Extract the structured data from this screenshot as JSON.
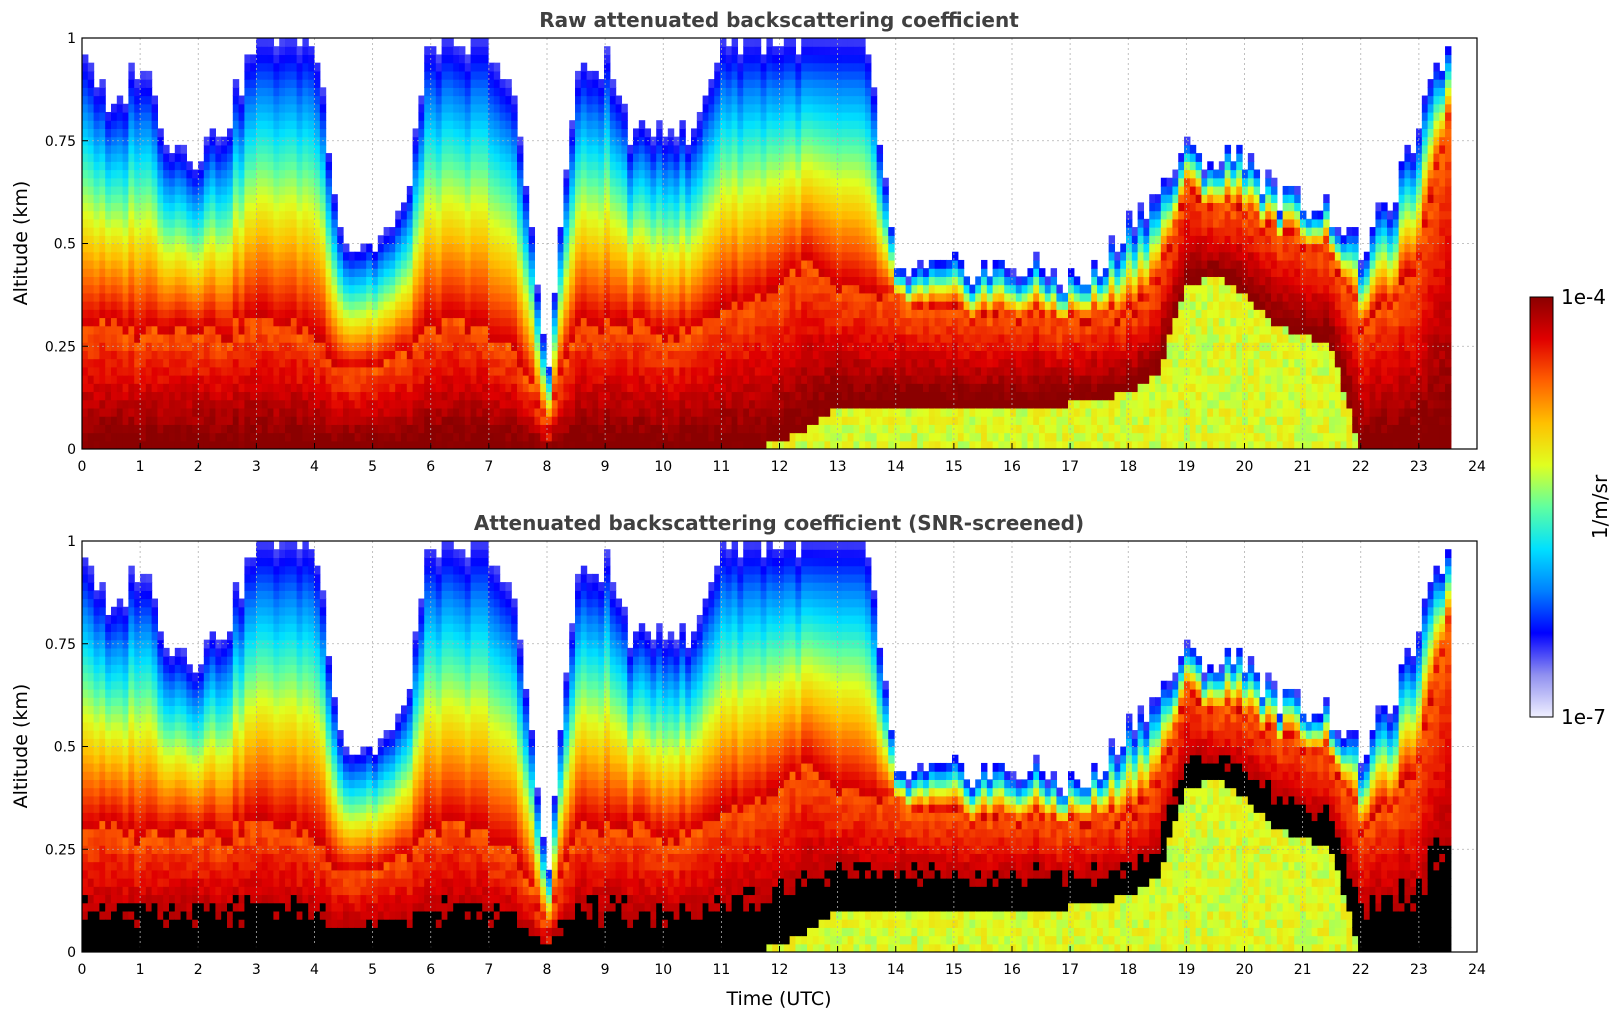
{
  "chart_data": [
    {
      "type": "heatmap",
      "title": "Raw attenuated backscattering coefficient",
      "xlabel": "",
      "ylabel": "Altitude (km)",
      "xlim": [
        0,
        24
      ],
      "ylim": [
        0,
        1
      ],
      "xticks": [
        "0",
        "1",
        "2",
        "3",
        "4",
        "5",
        "6",
        "7",
        "8",
        "9",
        "10",
        "11",
        "12",
        "13",
        "14",
        "15",
        "16",
        "17",
        "18",
        "19",
        "20",
        "21",
        "22",
        "23",
        "24"
      ],
      "yticks": [
        "0",
        "0.25",
        "0.5",
        "0.75",
        "1"
      ],
      "grid": true,
      "screened": false,
      "profile_summary": {
        "time_utc": [
          0.0,
          0.5,
          1.0,
          1.5,
          2.0,
          2.5,
          3.0,
          3.5,
          4.0,
          4.5,
          5.0,
          5.5,
          6.0,
          6.5,
          7.0,
          7.5,
          8.0,
          8.5,
          9.0,
          9.5,
          10.0,
          10.5,
          11.0,
          11.5,
          12.0,
          12.5,
          13.0,
          13.5,
          14.0,
          14.5,
          15.0,
          15.5,
          16.0,
          16.5,
          17.0,
          17.5,
          18.0,
          18.5,
          19.0,
          19.5,
          20.0,
          20.5,
          21.0,
          21.5,
          22.0,
          22.5,
          23.0,
          23.5
        ],
        "signal_top_km": [
          1.0,
          0.8,
          0.95,
          0.75,
          0.72,
          0.8,
          1.0,
          1.0,
          1.0,
          0.5,
          0.5,
          0.55,
          1.0,
          0.95,
          1.0,
          0.8,
          0.2,
          0.9,
          0.95,
          0.75,
          0.8,
          0.75,
          1.0,
          1.0,
          1.0,
          1.0,
          1.0,
          1.0,
          0.42,
          0.43,
          0.44,
          0.44,
          0.44,
          0.43,
          0.41,
          0.43,
          0.55,
          0.62,
          0.72,
          0.7,
          0.73,
          0.62,
          0.61,
          0.58,
          0.48,
          0.6,
          0.78,
          1.0
        ],
        "dense_layer_top_km": [
          0.3,
          0.3,
          0.28,
          0.3,
          0.3,
          0.28,
          0.32,
          0.3,
          0.28,
          0.2,
          0.2,
          0.22,
          0.3,
          0.3,
          0.28,
          0.22,
          0.05,
          0.3,
          0.3,
          0.3,
          0.28,
          0.28,
          0.35,
          0.35,
          0.4,
          0.45,
          0.38,
          0.38,
          0.35,
          0.33,
          0.33,
          0.32,
          0.32,
          0.32,
          0.31,
          0.32,
          0.33,
          0.4,
          0.62,
          0.58,
          0.58,
          0.52,
          0.5,
          0.48,
          0.3,
          0.35,
          0.45,
          0.8
        ],
        "dense_layer_base_km": [
          0.0,
          0.0,
          0.0,
          0.0,
          0.0,
          0.0,
          0.0,
          0.0,
          0.0,
          0.0,
          0.0,
          0.0,
          0.0,
          0.0,
          0.0,
          0.0,
          0.0,
          0.0,
          0.0,
          0.0,
          0.0,
          0.0,
          0.0,
          0.0,
          0.02,
          0.05,
          0.1,
          0.1,
          0.11,
          0.11,
          0.11,
          0.11,
          0.11,
          0.11,
          0.11,
          0.12,
          0.14,
          0.18,
          0.4,
          0.42,
          0.38,
          0.3,
          0.28,
          0.25,
          0.0,
          0.0,
          0.0,
          0.0
        ]
      },
      "note": "Backscatter ranges from 1e-7 (white/blue) to 1e-4 (dark red); dense near-surface layer below ~0.3 km up to 14 UTC, elevated layer 0.1-0.4 km from 14-18 UTC, rising to 0.4-0.7 km around 19-21 UTC; no data after ~23.5 UTC."
    },
    {
      "type": "heatmap",
      "title": "Attenuated backscattering coefficient (SNR-screened)",
      "xlabel": "Time (UTC)",
      "ylabel": "Altitude (km)",
      "xlim": [
        0,
        24
      ],
      "ylim": [
        0,
        1
      ],
      "xticks": [
        "0",
        "1",
        "2",
        "3",
        "4",
        "5",
        "6",
        "7",
        "8",
        "9",
        "10",
        "11",
        "12",
        "13",
        "14",
        "15",
        "16",
        "17",
        "18",
        "19",
        "20",
        "21",
        "22",
        "23",
        "24"
      ],
      "yticks": [
        "0",
        "0.25",
        "0.5",
        "0.75",
        "1"
      ],
      "grid": true,
      "screened": true,
      "note": "Same field as the raw panel; values exceeding the color scale / low-SNR saturated regions are shown in black."
    }
  ],
  "colorbar": {
    "label": "1/m/sr",
    "max_label": "1e-4",
    "min_label": "1e-7",
    "scale": "log",
    "colormap": [
      "#f0f0ff",
      "#9090f0",
      "#0000ff",
      "#0080ff",
      "#00e0ff",
      "#60ffa0",
      "#e0ff20",
      "#ffc000",
      "#ff6000",
      "#e00000",
      "#8b0000"
    ]
  }
}
